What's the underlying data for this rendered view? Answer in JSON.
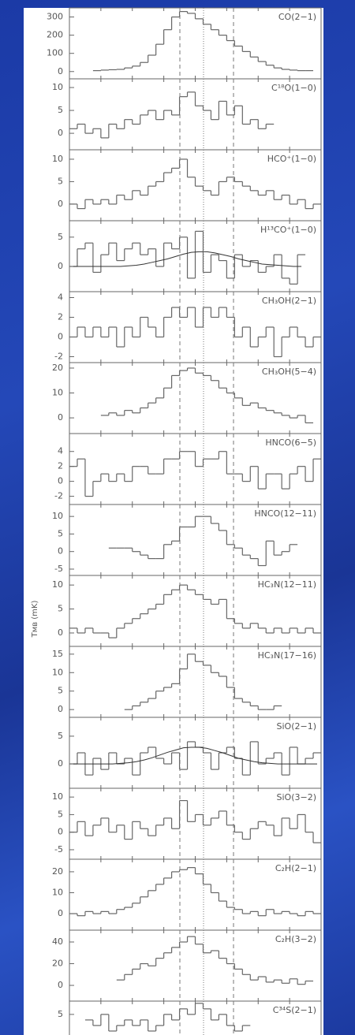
{
  "ylabel": "Tᴍʙ (mK)",
  "chart_data": [
    {
      "type": "step",
      "label": "CO(2−1)",
      "color": "#666666",
      "ylim": [
        -40,
        350
      ],
      "yticks": [
        0,
        100,
        200,
        300
      ],
      "values": [
        null,
        null,
        null,
        5,
        8,
        10,
        12,
        20,
        30,
        50,
        90,
        150,
        230,
        300,
        330,
        320,
        290,
        260,
        230,
        200,
        170,
        140,
        110,
        80,
        55,
        35,
        20,
        12,
        8,
        5,
        5,
        null
      ]
    },
    {
      "type": "step",
      "label": "C¹⁸O(1−0)",
      "color": "#666666",
      "ylim": [
        -3.6,
        11.9
      ],
      "yticks": [
        0,
        5,
        10
      ],
      "values": [
        1,
        2,
        0,
        1,
        -1,
        2,
        1,
        3,
        2,
        4,
        5,
        3,
        5,
        4,
        8,
        9,
        6,
        5,
        3,
        7,
        4,
        6,
        2,
        3,
        1,
        2,
        null,
        null,
        null,
        null,
        null,
        null
      ]
    },
    {
      "type": "step",
      "label": "HCO⁺(1−0)",
      "color": "#666666",
      "ylim": [
        -3.7,
        12.1
      ],
      "yticks": [
        0,
        5,
        10
      ],
      "values": [
        0,
        -1,
        1,
        0,
        1,
        0,
        2,
        1,
        3,
        2,
        4,
        5,
        7,
        8,
        10,
        6,
        4,
        3,
        2,
        5,
        6,
        5,
        4,
        3,
        2,
        3,
        1,
        2,
        0,
        1,
        -1,
        0
      ]
    },
    {
      "type": "step",
      "label": "H¹³CO⁺(1−0)",
      "color": "#666666",
      "ylim": [
        -4.3,
        7.8
      ],
      "yticks": [
        0,
        5
      ],
      "values": [
        0,
        3,
        4,
        -1,
        2,
        4,
        1,
        3,
        4,
        2,
        3,
        0,
        4,
        3,
        5,
        -2,
        6,
        -1,
        2,
        1,
        -2,
        2,
        0,
        1,
        -1,
        0,
        2,
        -2,
        -3,
        2,
        null,
        null
      ],
      "fit": [
        0,
        0,
        0,
        0,
        0,
        0,
        0,
        0.1,
        0.2,
        0.4,
        0.7,
        1.0,
        1.3,
        1.7,
        2.1,
        2.4,
        2.5,
        2.5,
        2.3,
        2.0,
        1.7,
        1.3,
        1.0,
        0.7,
        0.4,
        0.3,
        0.2,
        0.1,
        0,
        0,
        null,
        null
      ]
    },
    {
      "type": "step",
      "label": "CH₃OH(2−1)",
      "color": "#666666",
      "ylim": [
        -2.6,
        4.6
      ],
      "yticks": [
        -2,
        0,
        2,
        4
      ],
      "values": [
        0,
        1,
        0,
        1,
        0,
        1,
        -1,
        1,
        0,
        2,
        1,
        0,
        2,
        3,
        2,
        3,
        1,
        3,
        2,
        3,
        2,
        0,
        1,
        -1,
        0,
        1,
        -2,
        0,
        1,
        0,
        -1,
        0
      ]
    },
    {
      "type": "step",
      "label": "CH₃OH(5−4)",
      "color": "#666666",
      "ylim": [
        -6.3,
        22.2
      ],
      "yticks": [
        0,
        10,
        20
      ],
      "values": [
        null,
        null,
        null,
        null,
        1,
        2,
        1,
        3,
        2,
        4,
        6,
        8,
        12,
        17,
        19,
        20,
        18,
        17,
        15,
        12,
        10,
        8,
        5,
        6,
        4,
        3,
        2,
        1,
        0,
        1,
        -2,
        null
      ]
    },
    {
      "type": "step",
      "label": "HNCO(6−5)",
      "color": "#666666",
      "ylim": [
        -3.1,
        6.4
      ],
      "yticks": [
        -2,
        0,
        2,
        4
      ],
      "values": [
        2,
        3,
        -2,
        0,
        1,
        0,
        1,
        0,
        2,
        2,
        1,
        1,
        3,
        3,
        4,
        4,
        2,
        3,
        3,
        4,
        1,
        1,
        0,
        2,
        -1,
        1,
        1,
        -1,
        1,
        2,
        0,
        3
      ]
    },
    {
      "type": "step",
      "label": "HNCO(12−11)",
      "color": "#666666",
      "ylim": [
        -6.8,
        13.4
      ],
      "yticks": [
        -5,
        0,
        5,
        10
      ],
      "values": [
        null,
        null,
        null,
        null,
        null,
        1,
        1,
        1,
        0,
        -1,
        -2,
        -2,
        2,
        3,
        7,
        7,
        10,
        10,
        8,
        6,
        2,
        1,
        -1,
        -2,
        -4,
        3,
        -1,
        0,
        2,
        null,
        null,
        null
      ]
    },
    {
      "type": "step",
      "label": "HC₃N(12−11)",
      "color": "#666666",
      "ylim": [
        -2.8,
        12
      ],
      "yticks": [
        0,
        5,
        10
      ],
      "values": [
        1,
        0,
        1,
        0,
        0,
        -1,
        1,
        2,
        3,
        4,
        5,
        6,
        8,
        9,
        10,
        9,
        8,
        7,
        6,
        7,
        3,
        2,
        1,
        2,
        1,
        0,
        1,
        0,
        1,
        0,
        1,
        0
      ]
    },
    {
      "type": "step",
      "label": "HC₃N(17−16)",
      "color": "#666666",
      "ylim": [
        -2.1,
        17.1
      ],
      "yticks": [
        0,
        5,
        10,
        15
      ],
      "values": [
        null,
        null,
        null,
        null,
        null,
        null,
        null,
        0,
        1,
        2,
        3,
        5,
        6,
        7,
        11,
        15,
        13,
        12,
        10,
        9,
        6,
        3,
        2,
        1,
        0,
        0,
        1,
        null,
        null,
        null,
        null,
        null
      ]
    },
    {
      "type": "step",
      "label": "SiO(2−1)",
      "color": "#666666",
      "ylim": [
        -4.4,
        8.4
      ],
      "yticks": [
        0,
        5
      ],
      "values": [
        0,
        2,
        -2,
        1,
        -1,
        2,
        0,
        1,
        -2,
        2,
        3,
        1,
        0,
        2,
        -1,
        4,
        3,
        2,
        -1,
        2,
        3,
        1,
        -2,
        4,
        0,
        1,
        2,
        -2,
        3,
        0,
        1,
        2
      ],
      "fit": [
        0,
        0,
        0,
        0,
        0,
        0,
        0.1,
        0.2,
        0.4,
        0.7,
        1.1,
        1.6,
        2.1,
        2.5,
        2.9,
        3.0,
        3.0,
        2.8,
        2.4,
        2.0,
        1.5,
        1.0,
        0.7,
        0.4,
        0.2,
        0.1,
        0,
        0,
        0,
        0,
        0,
        0
      ]
    },
    {
      "type": "step",
      "label": "SiO(3−2)",
      "color": "#666666",
      "ylim": [
        -7.7,
        12.5
      ],
      "yticks": [
        -5,
        0,
        5,
        10
      ],
      "values": [
        0,
        3,
        -1,
        2,
        4,
        0,
        2,
        -2,
        3,
        1,
        -1,
        2,
        4,
        1,
        9,
        3,
        5,
        2,
        4,
        6,
        2,
        0,
        -2,
        1,
        3,
        2,
        -1,
        4,
        1,
        5,
        0,
        -3
      ]
    },
    {
      "type": "step",
      "label": "C₂H(2−1)",
      "color": "#666666",
      "ylim": [
        -7.9,
        26
      ],
      "yticks": [
        0,
        10,
        20
      ],
      "values": [
        0,
        -1,
        1,
        0,
        1,
        0,
        2,
        3,
        5,
        8,
        11,
        14,
        17,
        20,
        21,
        22,
        19,
        14,
        10,
        6,
        3,
        2,
        0,
        1,
        -1,
        2,
        0,
        1,
        0,
        -1,
        1,
        0
      ]
    },
    {
      "type": "step",
      "label": "C₂H(3−2)",
      "color": "#666666",
      "ylim": [
        -14.5,
        50.9
      ],
      "yticks": [
        0,
        20,
        40
      ],
      "values": [
        null,
        null,
        null,
        null,
        null,
        null,
        5,
        10,
        15,
        20,
        18,
        25,
        30,
        35,
        40,
        45,
        38,
        30,
        32,
        25,
        20,
        15,
        10,
        5,
        8,
        3,
        5,
        2,
        6,
        1,
        4,
        null
      ]
    },
    {
      "type": "step",
      "label": "C³⁴S(2−1)",
      "color": "#666666",
      "ylim": [
        -5.4,
        7.4
      ],
      "yticks": [
        5
      ],
      "values": [
        null,
        null,
        4,
        3,
        5,
        2,
        3,
        4,
        3,
        4,
        2,
        3,
        5,
        4,
        6,
        5,
        7,
        6,
        4,
        5,
        3,
        2,
        3,
        null,
        null,
        null,
        null,
        null,
        null,
        null,
        null,
        null
      ]
    }
  ]
}
